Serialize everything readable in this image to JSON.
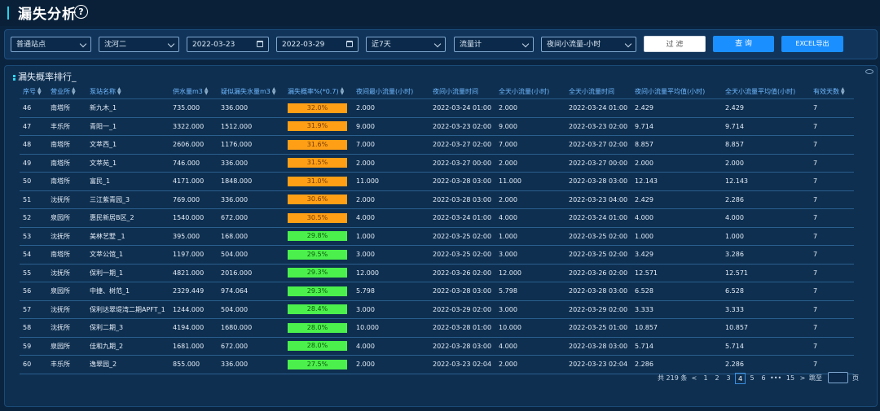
{
  "header": {
    "title": "漏失分析",
    "help_glyph": "?"
  },
  "filters": {
    "station_type": "普通站点",
    "area": "沈河二",
    "date_start": "2022-03-23",
    "date_end": "2022-03-29",
    "range": "近7天",
    "meter": "流量计",
    "metric": "夜间小流量-小时",
    "filter_label": "过 滤",
    "query_label": "查 询",
    "export_label": "EXCEL导出"
  },
  "panel": {
    "title": "漏失概率排行_"
  },
  "table": {
    "columns": [
      "序号",
      "营业所",
      "泵站名称",
      "供水量m3",
      "疑似漏失水量m3",
      "漏失概率%(*0.7)",
      "夜间最小流量(小时)",
      "夜间小流量时间",
      "全天小流量(小时)",
      "全天小流量时间",
      "夜间小流量平均值(小时)",
      "全天小流量平均值(小时)",
      "有效天数"
    ],
    "rows": [
      {
        "id": "46",
        "office": "南塔所",
        "station": "新九木_1",
        "supply": "735.000",
        "leak": "336.000",
        "prob": "32.0%",
        "prob_color": "orange",
        "night_min": "2.000",
        "night_time": "2022-03-24 01:00",
        "day_min": "2.000",
        "day_time": "2022-03-24 01:00",
        "night_avg": "2.429",
        "day_avg": "2.429",
        "days": "7"
      },
      {
        "id": "47",
        "office": "丰乐所",
        "station": "青阳一_1",
        "supply": "3322.000",
        "leak": "1512.000",
        "prob": "31.9%",
        "prob_color": "orange",
        "night_min": "9.000",
        "night_time": "2022-03-23 02:00",
        "day_min": "9.000",
        "day_time": "2022-03-23 02:00",
        "night_avg": "9.714",
        "day_avg": "9.714",
        "days": "7"
      },
      {
        "id": "48",
        "office": "南塔所",
        "station": "文萃西_1",
        "supply": "2606.000",
        "leak": "1176.000",
        "prob": "31.6%",
        "prob_color": "orange",
        "night_min": "7.000",
        "night_time": "2022-03-27 02:00",
        "day_min": "7.000",
        "day_time": "2022-03-27 02:00",
        "night_avg": "8.857",
        "day_avg": "8.857",
        "days": "7"
      },
      {
        "id": "49",
        "office": "南塔所",
        "station": "文萃苑_1",
        "supply": "746.000",
        "leak": "336.000",
        "prob": "31.5%",
        "prob_color": "orange",
        "night_min": "2.000",
        "night_time": "2022-03-27 00:00",
        "day_min": "2.000",
        "day_time": "2022-03-27 00:00",
        "night_avg": "2.000",
        "day_avg": "2.000",
        "days": "7"
      },
      {
        "id": "50",
        "office": "南塔所",
        "station": "富民_1",
        "supply": "4171.000",
        "leak": "1848.000",
        "prob": "31.0%",
        "prob_color": "orange",
        "night_min": "11.000",
        "night_time": "2022-03-28 03:00",
        "day_min": "11.000",
        "day_time": "2022-03-28 03:00",
        "night_avg": "12.143",
        "day_avg": "12.143",
        "days": "7"
      },
      {
        "id": "51",
        "office": "沈抚所",
        "station": "三江紫青园_3",
        "supply": "769.000",
        "leak": "336.000",
        "prob": "30.6%",
        "prob_color": "orange",
        "night_min": "2.000",
        "night_time": "2022-03-28 03:00",
        "day_min": "2.000",
        "day_time": "2022-03-23 04:00",
        "night_avg": "2.429",
        "day_avg": "2.286",
        "days": "7"
      },
      {
        "id": "52",
        "office": "泉园所",
        "station": "惠民新居B区_2",
        "supply": "1540.000",
        "leak": "672.000",
        "prob": "30.5%",
        "prob_color": "orange",
        "night_min": "4.000",
        "night_time": "2022-03-24 01:00",
        "day_min": "4.000",
        "day_time": "2022-03-24 01:00",
        "night_avg": "4.000",
        "day_avg": "4.000",
        "days": "7"
      },
      {
        "id": "53",
        "office": "沈抚所",
        "station": "美林艺墅 _1",
        "supply": "395.000",
        "leak": "168.000",
        "prob": "29.8%",
        "prob_color": "green",
        "night_min": "1.000",
        "night_time": "2022-03-25 02:00",
        "day_min": "1.000",
        "day_time": "2022-03-25 02:00",
        "night_avg": "1.000",
        "day_avg": "1.000",
        "days": "7"
      },
      {
        "id": "54",
        "office": "南塔所",
        "station": "文萃公馆_1",
        "supply": "1197.000",
        "leak": "504.000",
        "prob": "29.5%",
        "prob_color": "green",
        "night_min": "3.000",
        "night_time": "2022-03-25 02:00",
        "day_min": "3.000",
        "day_time": "2022-03-25 02:00",
        "night_avg": "3.429",
        "day_avg": "3.286",
        "days": "7"
      },
      {
        "id": "55",
        "office": "沈抚所",
        "station": "保利一期_1",
        "supply": "4821.000",
        "leak": "2016.000",
        "prob": "29.3%",
        "prob_color": "green",
        "night_min": "12.000",
        "night_time": "2022-03-26 02:00",
        "day_min": "12.000",
        "day_time": "2022-03-26 02:00",
        "night_avg": "12.571",
        "day_avg": "12.571",
        "days": "7"
      },
      {
        "id": "56",
        "office": "泉园所",
        "station": "中捷、树范_1",
        "supply": "2329.449",
        "leak": "974.064",
        "prob": "29.3%",
        "prob_color": "green",
        "night_min": "5.798",
        "night_time": "2022-03-28 03:00",
        "day_min": "5.798",
        "day_time": "2022-03-28 03:00",
        "night_avg": "6.528",
        "day_avg": "6.528",
        "days": "7"
      },
      {
        "id": "57",
        "office": "沈抚所",
        "station": "保利达翠堤湾二期APFT_1",
        "supply": "1244.000",
        "leak": "504.000",
        "prob": "28.4%",
        "prob_color": "green",
        "night_min": "3.000",
        "night_time": "2022-03-29 02:00",
        "day_min": "3.000",
        "day_time": "2022-03-29 02:00",
        "night_avg": "3.333",
        "day_avg": "3.333",
        "days": "7"
      },
      {
        "id": "58",
        "office": "沈抚所",
        "station": "保利二期_3",
        "supply": "4194.000",
        "leak": "1680.000",
        "prob": "28.0%",
        "prob_color": "green",
        "night_min": "10.000",
        "night_time": "2022-03-28 01:00",
        "day_min": "10.000",
        "day_time": "2022-03-25 01:00",
        "night_avg": "10.857",
        "day_avg": "10.857",
        "days": "7"
      },
      {
        "id": "59",
        "office": "泉园所",
        "station": "佳和九期_2",
        "supply": "1681.000",
        "leak": "672.000",
        "prob": "28.0%",
        "prob_color": "green",
        "night_min": "4.000",
        "night_time": "2022-03-28 03:00",
        "day_min": "4.000",
        "day_time": "2022-03-28 03:00",
        "night_avg": "5.714",
        "day_avg": "5.714",
        "days": "7"
      },
      {
        "id": "60",
        "office": "丰乐所",
        "station": "逸翠园_2",
        "supply": "855.000",
        "leak": "336.000",
        "prob": "27.5%",
        "prob_color": "green",
        "night_min": "2.000",
        "night_time": "2022-03-23 02:04",
        "day_min": "2.000",
        "day_time": "2022-03-23 02:04",
        "night_avg": "2.286",
        "day_avg": "2.286",
        "days": "7"
      }
    ]
  },
  "pagination": {
    "total": "共 219 条",
    "prev": "<",
    "pages": [
      "1",
      "2",
      "3",
      "4",
      "5",
      "6"
    ],
    "current": "4",
    "ellipsis": "•••",
    "last": "15",
    "next": ">",
    "goto_label": "跳至",
    "page_unit": "页"
  },
  "colors": {
    "bar_orange": "#ff9f16",
    "bar_green": "#4cf04c",
    "accent": "#1a8fff",
    "header_text": "#6fb8ff"
  }
}
